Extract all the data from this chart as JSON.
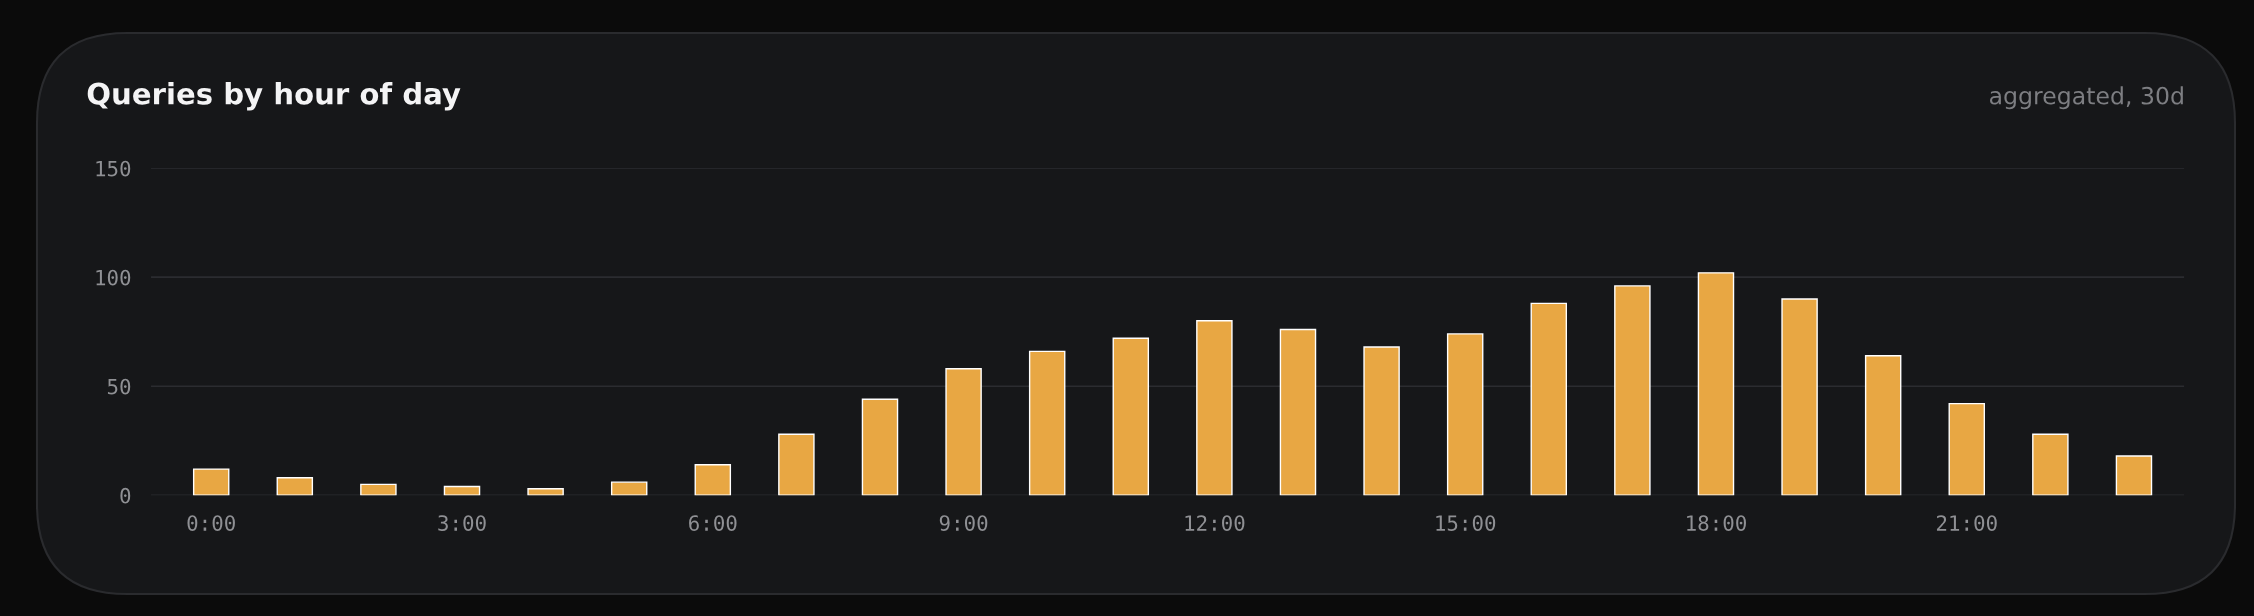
{
  "chart_data": {
    "type": "bar",
    "title": "Queries by hour of day",
    "subtitle": "aggregated, 30d",
    "categories": [
      "0:00",
      null,
      null,
      "3:00",
      null,
      null,
      "6:00",
      null,
      null,
      "9:00",
      null,
      null,
      "12:00",
      null,
      null,
      "15:00",
      null,
      null,
      "18:00",
      null,
      null,
      "21:00",
      null,
      null
    ],
    "values": [
      12,
      8,
      5,
      4,
      3,
      6,
      14,
      28,
      44,
      58,
      66,
      72,
      80,
      76,
      68,
      74,
      88,
      96,
      102,
      90,
      64,
      42,
      28,
      18
    ],
    "color": "#e8a743",
    "ylim": [
      0,
      150
    ],
    "yticks": [
      0,
      50,
      100,
      150
    ],
    "grid": "y"
  }
}
